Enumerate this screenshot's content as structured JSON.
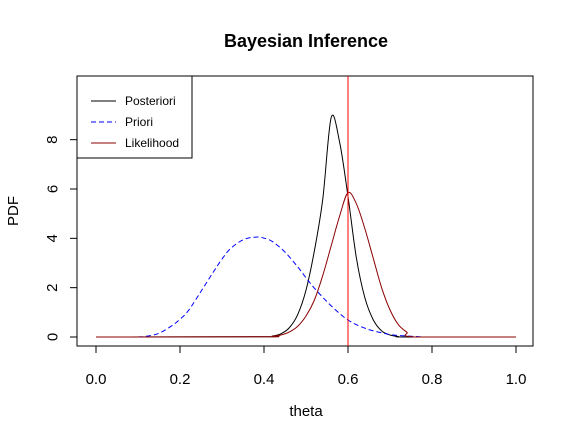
{
  "chart_data": {
    "type": "line",
    "title": "Bayesian Inference",
    "xlabel": "theta",
    "ylabel": "PDF",
    "xlim": [
      0,
      1
    ],
    "ylim": [
      0,
      9
    ],
    "x_ticks": [
      "0.0",
      "0.2",
      "0.4",
      "0.6",
      "0.8",
      "1.0"
    ],
    "y_ticks": [
      "0",
      "2",
      "4",
      "6",
      "8"
    ],
    "grid": false,
    "legend_position": "top-left",
    "vertical_line": {
      "x": 0.6,
      "color": "#ff0000"
    },
    "series": [
      {
        "name": "Posteriori",
        "color": "#000000",
        "dash": "solid",
        "x": [
          0.0,
          0.4,
          0.42,
          0.44,
          0.46,
          0.48,
          0.5,
          0.52,
          0.54,
          0.56,
          0.58,
          0.6,
          0.62,
          0.64,
          0.66,
          0.68,
          0.7,
          0.72,
          0.74,
          1.0
        ],
        "y": [
          0.0,
          0.01,
          0.04,
          0.13,
          0.37,
          0.9,
          1.9,
          3.5,
          5.6,
          8.9,
          7.9,
          5.7,
          3.2,
          1.6,
          0.7,
          0.25,
          0.08,
          0.02,
          0.0,
          0.0
        ]
      },
      {
        "name": "Priori",
        "color": "#0000ff",
        "dash": "dashed",
        "x": [
          0.1,
          0.12,
          0.15,
          0.18,
          0.2,
          0.22,
          0.25,
          0.28,
          0.3,
          0.32,
          0.35,
          0.38,
          0.4,
          0.42,
          0.45,
          0.48,
          0.5,
          0.52,
          0.55,
          0.58,
          0.6,
          0.62,
          0.65,
          0.68,
          0.7,
          0.72,
          0.75,
          0.78
        ],
        "y": [
          0.0,
          0.03,
          0.15,
          0.45,
          0.72,
          1.07,
          1.85,
          2.65,
          3.16,
          3.58,
          3.94,
          4.05,
          4.01,
          3.87,
          3.44,
          2.85,
          2.4,
          1.98,
          1.43,
          0.95,
          0.69,
          0.5,
          0.3,
          0.17,
          0.1,
          0.06,
          0.03,
          0.0
        ]
      },
      {
        "name": "Likelihood",
        "color": "#8b0000",
        "dash": "solid",
        "x": [
          0.0,
          0.4,
          0.42,
          0.44,
          0.46,
          0.48,
          0.5,
          0.52,
          0.54,
          0.56,
          0.58,
          0.6,
          0.62,
          0.64,
          0.66,
          0.68,
          0.7,
          0.72,
          0.74,
          0.76,
          1.0
        ],
        "y": [
          0.0,
          0.01,
          0.03,
          0.08,
          0.2,
          0.43,
          0.85,
          1.5,
          2.5,
          3.7,
          4.9,
          5.85,
          5.4,
          4.4,
          3.2,
          2.0,
          1.1,
          0.5,
          0.2,
          0.0,
          0.0
        ]
      }
    ]
  }
}
